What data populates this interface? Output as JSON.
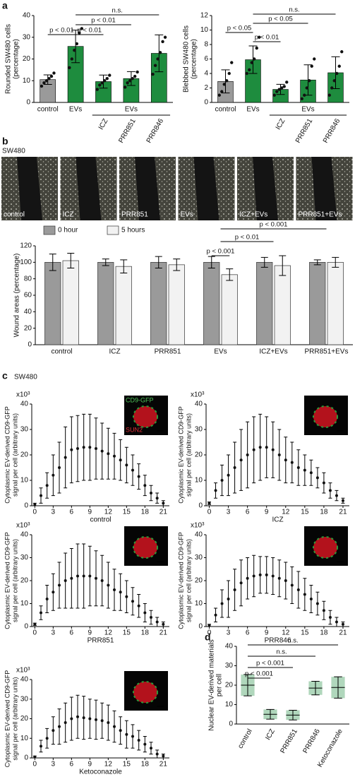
{
  "figure": {
    "panel_labels": [
      "a",
      "b",
      "c",
      "d"
    ],
    "cell_line_labels": [
      "SW480",
      "SW480"
    ],
    "wound_image_labels": [
      "control",
      "ICZ",
      "PRR851",
      "EVs",
      "ICZ+EVs",
      "PRR851+EVs"
    ],
    "inset_labels": [
      "CD9-GFP",
      "SUN2"
    ]
  },
  "chart_data": [
    {
      "type": "bar",
      "ylabel": [
        "Rounded SW480 cells",
        "(percentage)"
      ],
      "categories": [
        "control",
        "EVs",
        "ICZ",
        "PRR851",
        "PRR846"
      ],
      "values": [
        10.5,
        25.8,
        9.6,
        11,
        22.6
      ],
      "errors": [
        2.2,
        7.5,
        3,
        3.2,
        8.5
      ],
      "points": [
        [
          7.5,
          9,
          10,
          11,
          12,
          13.5
        ],
        [
          16,
          20,
          24,
          27,
          32,
          34
        ],
        [
          6,
          8,
          9,
          10,
          11,
          12.5
        ],
        [
          7,
          9,
          10,
          11,
          12,
          14
        ],
        [
          13,
          17,
          20,
          23,
          28,
          30
        ]
      ],
      "colors": [
        "#9a9a9a",
        "#1e8c3e",
        "#1e8c3e",
        "#1e8c3e",
        "#1e8c3e"
      ],
      "ylim": [
        0,
        40
      ],
      "yticks": [
        0,
        10,
        20,
        30,
        40
      ],
      "group_label": "EVs",
      "annotations": [
        "n.s.",
        "p < 0.01",
        "p < 0.01",
        "p < 0.01"
      ]
    },
    {
      "type": "bar",
      "ylabel": [
        "Blebbed SW480 cells",
        "(percentage)"
      ],
      "categories": [
        "control",
        "EVs",
        "ICZ",
        "PRR851",
        "PRR846"
      ],
      "values": [
        2.9,
        5.9,
        1.8,
        3.1,
        4.1
      ],
      "errors": [
        1.6,
        1.9,
        0.7,
        2.1,
        2.2
      ],
      "points": [
        [
          1,
          1.5,
          2.5,
          3,
          4,
          5.5
        ],
        [
          4,
          4.5,
          5.5,
          6,
          7.5,
          9
        ],
        [
          1,
          1.5,
          1.8,
          2,
          2.2,
          2.8
        ],
        [
          0.5,
          1,
          2,
          3,
          5,
          6
        ],
        [
          1,
          2,
          3,
          4,
          5,
          7
        ]
      ],
      "colors": [
        "#9a9a9a",
        "#1e8c3e",
        "#1e8c3e",
        "#1e8c3e",
        "#1e8c3e"
      ],
      "ylim": [
        0,
        12
      ],
      "yticks": [
        0,
        2,
        4,
        6,
        8,
        10,
        12
      ],
      "group_label": "EVs",
      "annotations": [
        "n.s.",
        "p < 0.05",
        "p < 0.05",
        "p < 0.01"
      ]
    },
    {
      "type": "grouped_bar",
      "ylabel": [
        "Wound areas (percentage)"
      ],
      "categories": [
        "control",
        "ICZ",
        "PRR851",
        "EVs",
        "ICZ+EVs",
        "PRR851+EVs"
      ],
      "series": [
        {
          "name": "0 hour",
          "color": "#9a9a9a",
          "values": [
            100,
            100,
            100,
            100,
            100,
            100
          ],
          "errors": [
            10,
            4,
            7,
            7,
            6,
            3
          ]
        },
        {
          "name": "5 hours",
          "color": "#f2f2f2",
          "values": [
            102,
            95,
            97,
            85,
            96,
            100
          ],
          "errors": [
            9,
            8,
            7,
            7,
            12,
            6
          ]
        }
      ],
      "ylim": [
        0,
        120
      ],
      "yticks": [
        0,
        20,
        40,
        60,
        80,
        100,
        120
      ],
      "legend": "top-left",
      "annotations": [
        "p < 0.001",
        "p < 0.01",
        "p < 0.001"
      ]
    },
    {
      "type": "errorbar",
      "ylabel": [
        "Cytoplasmic EV-derived CD9-GFP",
        "signal per cell (arbitrary units)"
      ],
      "y_unit_label": "x10³",
      "xlabel": "control",
      "x": [
        0,
        1,
        2,
        3,
        4,
        5,
        6,
        7,
        8,
        9,
        10,
        11,
        12,
        13,
        14,
        15,
        16,
        17,
        18,
        19,
        20,
        21
      ],
      "values": [
        0.5,
        4,
        8,
        12,
        15,
        19,
        22,
        22.5,
        23,
        23,
        22.5,
        21.5,
        20.5,
        19.5,
        18,
        16,
        14,
        11.5,
        8,
        5,
        3,
        1
      ],
      "errors": [
        0.5,
        3,
        5,
        8,
        10,
        12,
        13,
        13,
        13,
        13,
        12,
        11,
        10,
        9,
        8,
        7,
        6,
        5,
        4,
        3,
        2,
        1
      ],
      "xlim": [
        -0.5,
        22
      ],
      "xticks": [
        0,
        3,
        6,
        9,
        12,
        15,
        18,
        21
      ],
      "ylim": [
        0,
        40
      ],
      "yticks": [
        0,
        10,
        20,
        30,
        40
      ]
    },
    {
      "type": "errorbar",
      "ylabel": [
        "Cytoplasmic EV-derived CD9-GFP",
        "signal per cell (arbitrary units)"
      ],
      "y_unit_label": "x10³",
      "xlabel": "ICZ",
      "x": [
        0,
        1,
        2,
        3,
        4,
        5,
        6,
        7,
        8,
        9,
        10,
        11,
        12,
        13,
        14,
        15,
        16,
        17,
        18,
        19,
        20,
        21
      ],
      "values": [
        1,
        6,
        10,
        12,
        15,
        18,
        20,
        22,
        23,
        23,
        22,
        20,
        18,
        17,
        15,
        14,
        13,
        11,
        9,
        6,
        4,
        2
      ],
      "errors": [
        0.5,
        3,
        6,
        8,
        10,
        12,
        13,
        13,
        13,
        12,
        11,
        10,
        9,
        8,
        7,
        6,
        5,
        4,
        4,
        3,
        2,
        1
      ],
      "xlim": [
        -0.5,
        22
      ],
      "xticks": [
        0,
        3,
        6,
        9,
        12,
        15,
        18,
        21
      ],
      "ylim": [
        0,
        40
      ],
      "yticks": [
        0,
        10,
        20,
        30,
        40
      ]
    },
    {
      "type": "errorbar",
      "ylabel": [
        "Cytoplasmic EV-derived CD9-GFP",
        "signal per cell (arbitrary units)"
      ],
      "y_unit_label": "x10³",
      "xlabel": "PRR851",
      "x": [
        0,
        1,
        2,
        3,
        4,
        5,
        6,
        7,
        8,
        9,
        10,
        11,
        12,
        13,
        14,
        15,
        16,
        17,
        18,
        19,
        20,
        21
      ],
      "values": [
        1,
        6,
        12,
        15,
        18,
        20,
        21,
        22,
        22,
        22,
        21,
        20,
        18,
        16,
        15,
        13,
        11,
        9,
        6,
        4,
        2,
        1
      ],
      "errors": [
        0.5,
        3,
        6,
        8,
        10,
        12,
        13,
        14,
        14,
        13,
        12,
        11,
        10,
        9,
        8,
        7,
        6,
        5,
        4,
        3,
        2,
        1
      ],
      "xlim": [
        -0.5,
        22
      ],
      "xticks": [
        0,
        3,
        6,
        9,
        12,
        15,
        18,
        21
      ],
      "ylim": [
        0,
        40
      ],
      "yticks": [
        0,
        10,
        20,
        30,
        40
      ]
    },
    {
      "type": "errorbar",
      "ylabel": [
        "Cytoplasmic EV-derived CD9-GFP",
        "signal per cell (arbitrary units)"
      ],
      "y_unit_label": "x10³",
      "xlabel": "PRR846",
      "x": [
        0,
        1,
        2,
        3,
        4,
        5,
        6,
        7,
        8,
        9,
        10,
        11,
        12,
        13,
        14,
        15,
        16,
        17,
        18,
        19,
        20,
        21
      ],
      "values": [
        0.5,
        5,
        10,
        12,
        16,
        19,
        21,
        22,
        22.5,
        22.5,
        22,
        21,
        20,
        18,
        16,
        14,
        12,
        10,
        7,
        4,
        2,
        1
      ],
      "errors": [
        0.5,
        3,
        6,
        8,
        9,
        10,
        9,
        9,
        8,
        8,
        8,
        8,
        8,
        8,
        8,
        7,
        6,
        5,
        4,
        3,
        2,
        1
      ],
      "xlim": [
        -0.5,
        22
      ],
      "xticks": [
        0,
        3,
        6,
        9,
        12,
        15,
        18,
        21
      ],
      "ylim": [
        0,
        40
      ],
      "yticks": [
        0,
        10,
        20,
        30,
        40
      ]
    },
    {
      "type": "errorbar",
      "ylabel": [
        "Cytoplasmic EV-derived CD9-GFP",
        "signal per cell (arbitrary units)"
      ],
      "y_unit_label": "x10³",
      "xlabel": "Ketoconazole",
      "x": [
        0,
        1,
        2,
        3,
        4,
        5,
        6,
        7,
        8,
        9,
        10,
        11,
        12,
        13,
        14,
        15,
        16,
        17,
        18,
        19,
        20,
        21
      ],
      "values": [
        0.5,
        6,
        10,
        14,
        16,
        18,
        20,
        21,
        20.5,
        20,
        19.5,
        19,
        18,
        16,
        14,
        12,
        11,
        9,
        7,
        5,
        2,
        1
      ],
      "errors": [
        0.5,
        3,
        5,
        7,
        9,
        10,
        11,
        11,
        11,
        10,
        10,
        9,
        9,
        8,
        7,
        7,
        6,
        5,
        4,
        3,
        2,
        1
      ],
      "xlim": [
        -0.5,
        22
      ],
      "xticks": [
        0,
        3,
        6,
        9,
        12,
        15,
        18,
        21
      ],
      "ylim": [
        0,
        40
      ],
      "yticks": [
        0,
        10,
        20,
        30,
        40
      ]
    },
    {
      "type": "strip",
      "ylabel": [
        "Nuclear EV-derived materials",
        "per cell"
      ],
      "categories": [
        "control",
        "ICZ",
        "PRR851",
        "PRR846",
        "Ketoconazole"
      ],
      "values": [
        20,
        5,
        4.6,
        18.5,
        18.8
      ],
      "errors": [
        5.5,
        2.5,
        2.5,
        3.5,
        5.5
      ],
      "color": "#1e8c3e",
      "ylim": [
        0,
        40
      ],
      "yticks": [
        0,
        10,
        20,
        30,
        40
      ],
      "annotations": [
        "n.s.",
        "n.s.",
        "p < 0.001",
        "p < 0.001"
      ]
    }
  ]
}
